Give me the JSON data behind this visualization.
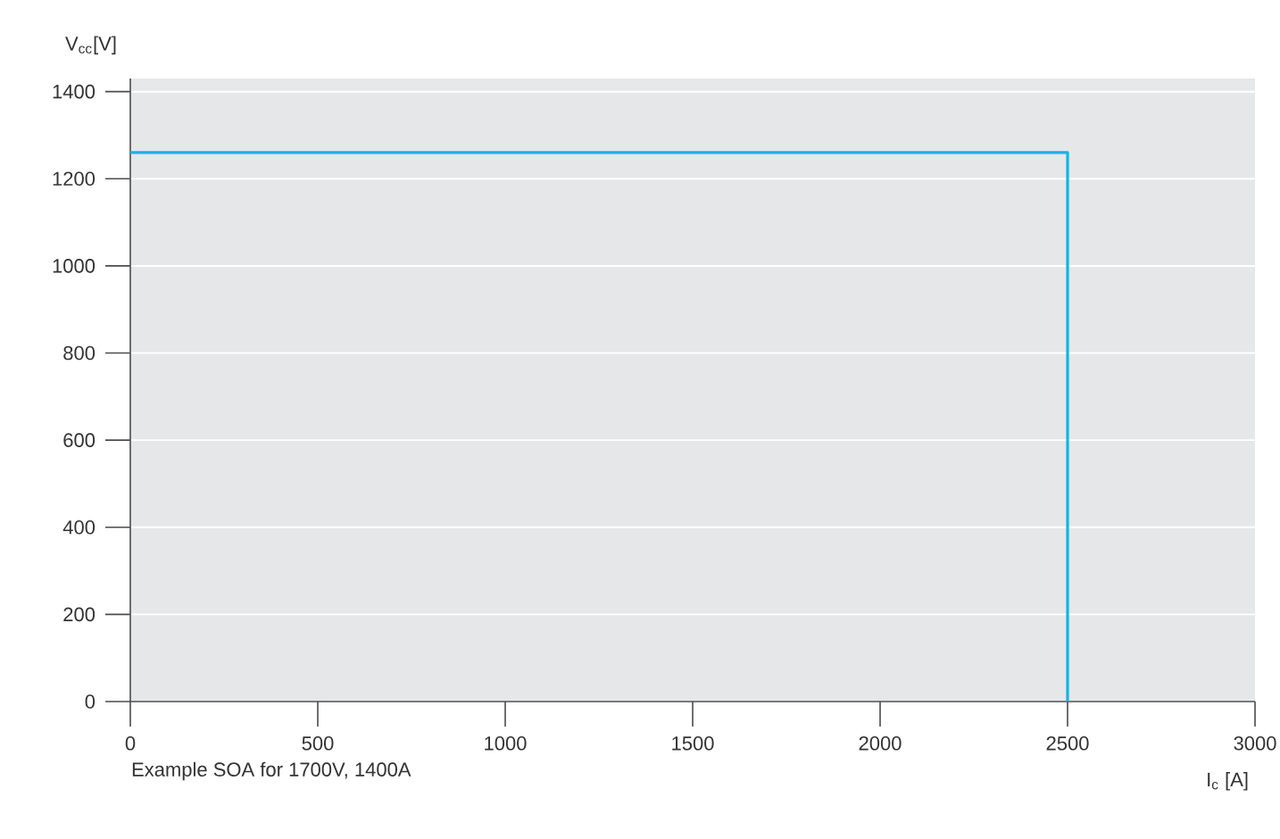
{
  "chart_data": {
    "type": "step",
    "xlabel": "I$_{c}$ [A]",
    "ylabel": "V$_{cc}$[V]",
    "annotations": [
      "Example SOA for 1700V, 1400A"
    ],
    "series": [
      {
        "color": "#1ab0e8",
        "values": [
          1260,
          0
        ]
      }
    ],
    "xlim": [
      0,
      3000
    ],
    "xticks": [
      0,
      500,
      1000,
      1500,
      2000,
      2500,
      3000
    ],
    "ylim": [
      0,
      1430
    ],
    "yticks": [
      0,
      200,
      400,
      600,
      800,
      1000,
      1200,
      1400
    ],
    "x": [
      0,
      2500
    ],
    "grid": "y"
  }
}
